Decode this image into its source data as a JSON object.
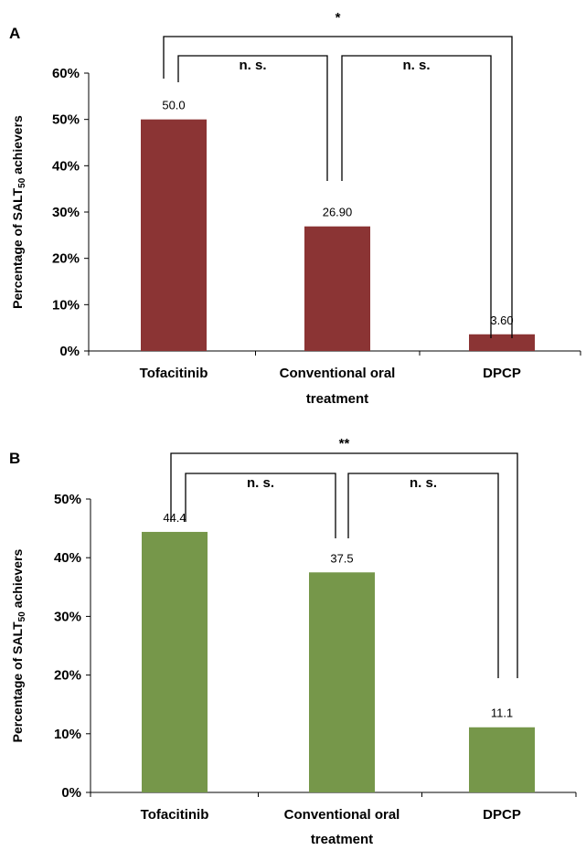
{
  "chart_data": [
    {
      "panel": "A",
      "type": "bar",
      "categories": [
        "Tofacitinib",
        "Conventional oral treatment",
        "DPCP"
      ],
      "category_lines": [
        [
          "Tofacitinib"
        ],
        [
          "Conventional oral",
          "treatment"
        ],
        [
          "DPCP"
        ]
      ],
      "values": [
        50.0,
        26.9,
        3.6
      ],
      "data_labels": [
        "50.0",
        "26.90",
        "3.60"
      ],
      "ylabel": "Percentage of SALT",
      "ylabel_subscript": "50",
      "ylabel_suffix": " achievers",
      "ylim": [
        0,
        60
      ],
      "yticks": [
        0,
        10,
        20,
        30,
        40,
        50,
        60
      ],
      "ytick_labels": [
        "0%",
        "10%",
        "20%",
        "30%",
        "40%",
        "50%",
        "60%"
      ],
      "bar_color": "#8b3434",
      "grid": false,
      "significance": [
        {
          "from": "Tofacitinib",
          "to": "DPCP",
          "label": "*"
        },
        {
          "from": "Tofacitinib",
          "to": "Conventional oral treatment",
          "label": "n. s."
        },
        {
          "from": "Conventional oral treatment",
          "to": "DPCP",
          "label": "n. s."
        }
      ]
    },
    {
      "panel": "B",
      "type": "bar",
      "categories": [
        "Tofacitinib",
        "Conventional oral treatment",
        "DPCP"
      ],
      "category_lines": [
        [
          "Tofacitinib"
        ],
        [
          "Conventional oral",
          "treatment"
        ],
        [
          "DPCP"
        ]
      ],
      "values": [
        44.4,
        37.5,
        11.1
      ],
      "data_labels": [
        "44.4",
        "37.5",
        "11.1"
      ],
      "ylabel": "Percentage of SALT",
      "ylabel_subscript": "50",
      "ylabel_suffix": " achievers",
      "ylim": [
        0,
        50
      ],
      "yticks": [
        0,
        10,
        20,
        30,
        40,
        50
      ],
      "ytick_labels": [
        "0%",
        "10%",
        "20%",
        "30%",
        "40%",
        "50%"
      ],
      "bar_color": "#76974a",
      "grid": false,
      "significance": [
        {
          "from": "Tofacitinib",
          "to": "DPCP",
          "label": "**"
        },
        {
          "from": "Tofacitinib",
          "to": "Conventional oral treatment",
          "label": "n. s."
        },
        {
          "from": "Conventional oral treatment",
          "to": "DPCP",
          "label": "n. s."
        }
      ]
    }
  ]
}
